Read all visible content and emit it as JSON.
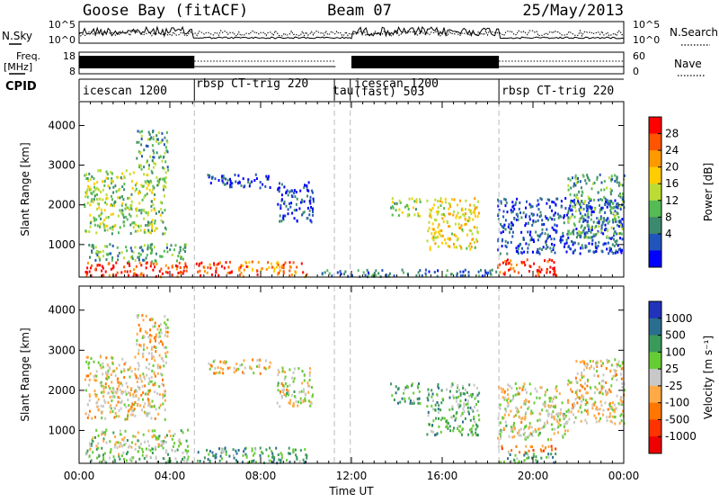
{
  "header": {
    "title": "Goose Bay (fitACF)",
    "beam": "Beam 07",
    "date": "25/May/2013"
  },
  "sky_panel": {
    "left_label": "N.Sky",
    "right_label": "N.Search",
    "left_ticks": [
      "10^5",
      "10^0"
    ],
    "right_ticks": [
      "10^5",
      "10^0"
    ]
  },
  "freq_panel": {
    "left_label_line1": "Freq.",
    "left_label_line2": "[MHz]",
    "right_label": "Nave",
    "left_ticks": [
      "18",
      "8"
    ],
    "right_ticks": [
      "60",
      "0"
    ]
  },
  "cpid": {
    "label": "CPID",
    "segments": [
      {
        "name": "icescan 1200",
        "start_h": 0.0,
        "end_h": 5.08
      },
      {
        "name": "rbsp CT-trig 220",
        "start_h": 5.08,
        "end_h": 11.25
      },
      {
        "name": "tau",
        "start_h": 11.25,
        "end_h": 11.95
      },
      {
        "name": "icescan 1200",
        "start_h": 11.95,
        "end_h": 18.5
      },
      {
        "name": "(fast) 503",
        "start_h": 11.95,
        "end_h": 18.5
      },
      {
        "name": "rbsp CT-trig 220",
        "start_h": 18.5,
        "end_h": 24.0
      }
    ]
  },
  "chart_data": [
    {
      "type": "heatmap",
      "ylabel": "Slant Range [km]",
      "xlabel": "Time UT",
      "x_unit": "hours UT",
      "x_ticks": [
        "00:00",
        "04:00",
        "08:00",
        "12:00",
        "16:00",
        "20:00",
        "00:00"
      ],
      "xlim": [
        0,
        24
      ],
      "ylim": [
        180,
        4600
      ],
      "y_ticks": [
        1000,
        2000,
        3000,
        4000
      ],
      "colorbar": {
        "label": "Power [dB]",
        "ticks": [
          "28",
          "24",
          "20",
          "16",
          "12",
          "8",
          "4"
        ],
        "colors": [
          "#ff0000",
          "#ff5500",
          "#ff9900",
          "#ffcc00",
          "#bbdd33",
          "#55bb55",
          "#3c8a6e",
          "#2255bb",
          "#0000ff"
        ]
      },
      "regions": [
        {
          "t0": 0.2,
          "t1": 4.8,
          "r0": 220,
          "r1": 600,
          "level": 0.9
        },
        {
          "t0": 0.4,
          "t1": 4.8,
          "r0": 600,
          "r1": 1050,
          "level": 0.35
        },
        {
          "t0": 0.2,
          "t1": 3.8,
          "r0": 1300,
          "r1": 2900,
          "level": 0.45
        },
        {
          "t0": 2.5,
          "t1": 3.9,
          "r0": 2900,
          "r1": 3900,
          "level": 0.35
        },
        {
          "t0": 5.1,
          "t1": 6.7,
          "r0": 220,
          "r1": 600,
          "level": 0.85
        },
        {
          "t0": 5.6,
          "t1": 8.4,
          "r0": 2450,
          "r1": 2800,
          "level": 0.1
        },
        {
          "t0": 7.0,
          "t1": 10.0,
          "r0": 220,
          "r1": 600,
          "level": 0.75
        },
        {
          "t0": 8.7,
          "t1": 10.3,
          "r0": 1600,
          "r1": 2600,
          "level": 0.15
        },
        {
          "t0": 10.3,
          "t1": 18.4,
          "r0": 220,
          "r1": 400,
          "level": 0.25
        },
        {
          "t0": 13.7,
          "t1": 15.0,
          "r0": 1700,
          "r1": 2200,
          "level": 0.45
        },
        {
          "t0": 15.3,
          "t1": 17.6,
          "r0": 900,
          "r1": 2200,
          "level": 0.6
        },
        {
          "t0": 18.4,
          "t1": 21.0,
          "r0": 230,
          "r1": 650,
          "level": 0.92
        },
        {
          "t0": 18.4,
          "t1": 23.9,
          "r0": 800,
          "r1": 2200,
          "level": 0.15
        },
        {
          "t0": 21.5,
          "t1": 24.0,
          "r0": 1200,
          "r1": 2800,
          "level": 0.35
        }
      ]
    },
    {
      "type": "heatmap",
      "ylabel": "Slant Range [km]",
      "xlabel": "Time UT",
      "x_unit": "hours UT",
      "x_ticks": [
        "00:00",
        "04:00",
        "08:00",
        "12:00",
        "16:00",
        "20:00",
        "00:00"
      ],
      "xlim": [
        0,
        24
      ],
      "ylim": [
        180,
        4600
      ],
      "y_ticks": [
        1000,
        2000,
        3000,
        4000
      ],
      "colorbar": {
        "label": "Velocity [m s⁻¹]",
        "ticks": [
          "1000",
          "500",
          "100",
          "25",
          "-25",
          "-100",
          "-500",
          "-1000"
        ],
        "colors": [
          "#2233bb",
          "#2a6e8f",
          "#3a9a5a",
          "#66cc33",
          "#c8c8c8",
          "#ffaa44",
          "#ff7700",
          "#ff3300",
          "#ee0000"
        ]
      },
      "regions": [
        {
          "t0": 0.2,
          "t1": 4.8,
          "r0": 220,
          "r1": 600,
          "level": 0.6
        },
        {
          "t0": 0.4,
          "t1": 4.8,
          "r0": 600,
          "r1": 1050,
          "level": 0.55
        },
        {
          "t0": 0.2,
          "t1": 3.8,
          "r0": 1300,
          "r1": 2900,
          "level": 0.45
        },
        {
          "t0": 2.5,
          "t1": 3.9,
          "r0": 2900,
          "r1": 3900,
          "level": 0.45
        },
        {
          "t0": 5.1,
          "t1": 10.0,
          "r0": 220,
          "r1": 600,
          "level": 0.7
        },
        {
          "t0": 5.6,
          "t1": 8.4,
          "r0": 2450,
          "r1": 2800,
          "level": 0.45
        },
        {
          "t0": 8.7,
          "t1": 10.3,
          "r0": 1600,
          "r1": 2600,
          "level": 0.5
        },
        {
          "t0": 13.7,
          "t1": 15.0,
          "r0": 1700,
          "r1": 2200,
          "level": 0.7
        },
        {
          "t0": 15.3,
          "t1": 17.6,
          "r0": 900,
          "r1": 2200,
          "level": 0.65
        },
        {
          "t0": 18.4,
          "t1": 21.0,
          "r0": 480,
          "r1": 650,
          "level": 0.3
        },
        {
          "t0": 18.4,
          "t1": 21.0,
          "r0": 230,
          "r1": 470,
          "level": 0.68
        },
        {
          "t0": 18.4,
          "t1": 21.5,
          "r0": 800,
          "r1": 2200,
          "level": 0.5
        },
        {
          "t0": 21.5,
          "t1": 24.0,
          "r0": 1200,
          "r1": 2800,
          "level": 0.45
        }
      ]
    }
  ]
}
